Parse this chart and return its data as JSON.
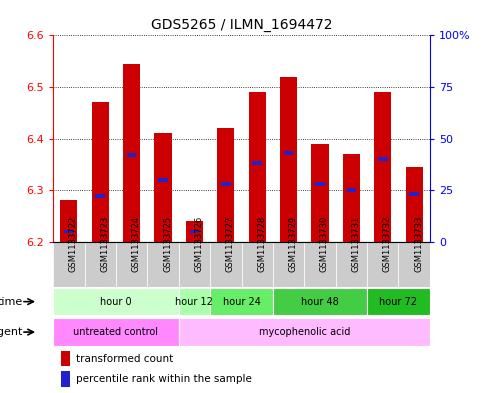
{
  "title": "GDS5265 / ILMN_1694472",
  "samples": [
    "GSM1133722",
    "GSM1133723",
    "GSM1133724",
    "GSM1133725",
    "GSM1133726",
    "GSM1133727",
    "GSM1133728",
    "GSM1133729",
    "GSM1133730",
    "GSM1133731",
    "GSM1133732",
    "GSM1133733"
  ],
  "bar_tops": [
    6.28,
    6.47,
    6.545,
    6.41,
    6.24,
    6.42,
    6.49,
    6.52,
    6.39,
    6.37,
    6.49,
    6.345
  ],
  "bar_base": 6.2,
  "percentile_pct": [
    5,
    22,
    42,
    30,
    5,
    28,
    38,
    43,
    28,
    25,
    40,
    23
  ],
  "ylim_min": 6.2,
  "ylim_max": 6.6,
  "yticks_left": [
    6.2,
    6.3,
    6.4,
    6.5,
    6.6
  ],
  "yticks_right": [
    0,
    25,
    50,
    75,
    100
  ],
  "bar_color": "#cc0000",
  "percentile_color": "#2222cc",
  "background_color": "#ffffff",
  "time_groups": [
    {
      "label": "hour 0",
      "start": 0,
      "end": 3,
      "color": "#ccffcc"
    },
    {
      "label": "hour 12",
      "start": 4,
      "end": 4,
      "color": "#aaffaa"
    },
    {
      "label": "hour 24",
      "start": 5,
      "end": 6,
      "color": "#66ee66"
    },
    {
      "label": "hour 48",
      "start": 7,
      "end": 9,
      "color": "#44cc44"
    },
    {
      "label": "hour 72",
      "start": 10,
      "end": 11,
      "color": "#22bb22"
    }
  ],
  "agent_groups": [
    {
      "label": "untreated control",
      "start": 0,
      "end": 3,
      "color": "#ff88ff"
    },
    {
      "label": "mycophenolic acid",
      "start": 4,
      "end": 11,
      "color": "#ffbbff"
    }
  ],
  "legend_bar_label": "transformed count",
  "legend_pct_label": "percentile rank within the sample",
  "time_row_label": "time",
  "agent_row_label": "agent"
}
